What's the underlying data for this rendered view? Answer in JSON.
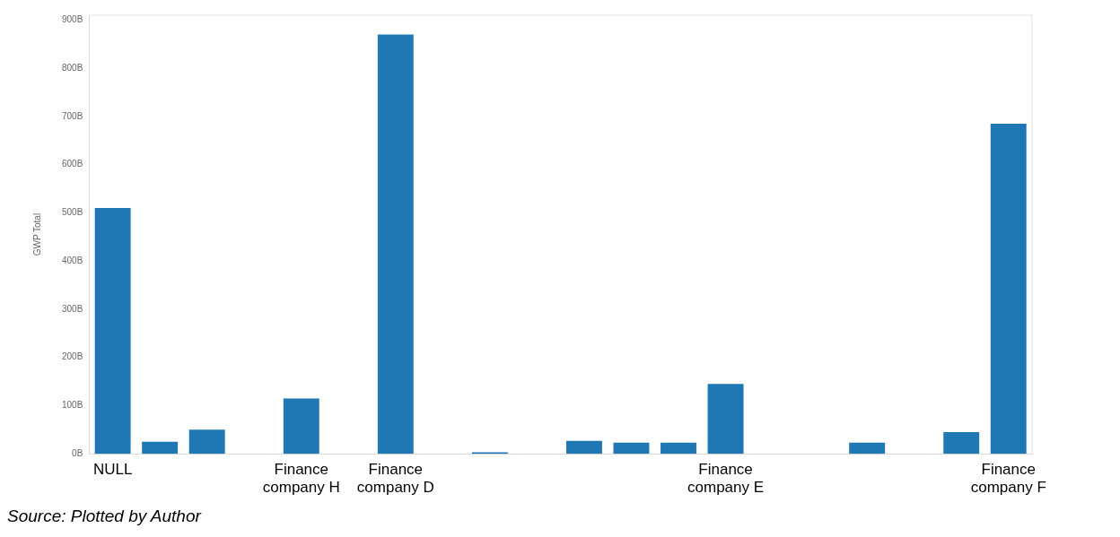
{
  "chart_data": {
    "type": "bar",
    "ylabel": "GWP Total",
    "categories": [
      "NULL",
      null,
      null,
      null,
      "Finance company H",
      null,
      "Finance company D",
      null,
      null,
      null,
      null,
      null,
      null,
      "Finance company E",
      null,
      null,
      null,
      null,
      null,
      "Finance company F"
    ],
    "values": [
      510,
      25,
      50,
      0,
      115,
      0,
      870,
      0,
      3,
      0,
      27,
      23,
      23,
      145,
      0,
      0,
      23,
      0,
      45,
      685
    ],
    "color": "#1f77b4",
    "ylim": [
      0,
      910
    ],
    "yticks": [
      {
        "value": 0,
        "label": "0B"
      },
      {
        "value": 100,
        "label": "100B"
      },
      {
        "value": 200,
        "label": "200B"
      },
      {
        "value": 300,
        "label": "300B"
      },
      {
        "value": 400,
        "label": "400B"
      },
      {
        "value": 500,
        "label": "500B"
      },
      {
        "value": 600,
        "label": "600B"
      },
      {
        "value": 700,
        "label": "700B"
      },
      {
        "value": 800,
        "label": "800B"
      },
      {
        "value": 900,
        "label": "900B"
      }
    ],
    "grid": false,
    "legend": false,
    "annotations": [
      "Source: Plotted by Author"
    ]
  }
}
